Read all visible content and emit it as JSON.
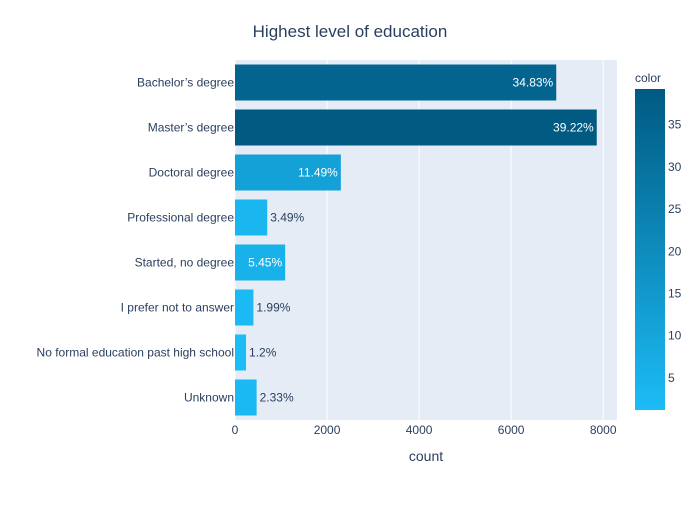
{
  "chart_data": {
    "type": "bar",
    "orientation": "horizontal",
    "title": "Highest level of education",
    "xlabel": "count",
    "ylabel": "",
    "xlim": [
      0,
      8300
    ],
    "x_ticks": [
      0,
      2000,
      4000,
      6000,
      8000
    ],
    "grid": true,
    "categories": [
      "Bachelor’s degree",
      "Master’s degree",
      "Doctoral degree",
      "Professional degree",
      "Started, no degree",
      "I prefer not to answer",
      "No formal education past high school",
      "Unknown"
    ],
    "values": [
      6980,
      7860,
      2300,
      700,
      1090,
      400,
      240,
      470
    ],
    "labels": [
      "34.83%",
      "39.22%",
      "11.49%",
      "3.49%",
      "5.45%",
      "1.99%",
      "1.2%",
      "2.33%"
    ],
    "color_values": [
      34.83,
      39.22,
      11.49,
      3.49,
      5.45,
      1.99,
      1.2,
      2.33
    ],
    "colorbar": {
      "title": "color",
      "ticks": [
        5,
        10,
        15,
        20,
        25,
        30,
        35
      ],
      "range": [
        1.2,
        39.22
      ],
      "color_low": "#1cbcf6",
      "color_high": "#005a82"
    },
    "colors": {
      "plot_bg": "#e5ecf6",
      "grid": "#ffffff",
      "text": "#2a3f5f"
    }
  }
}
